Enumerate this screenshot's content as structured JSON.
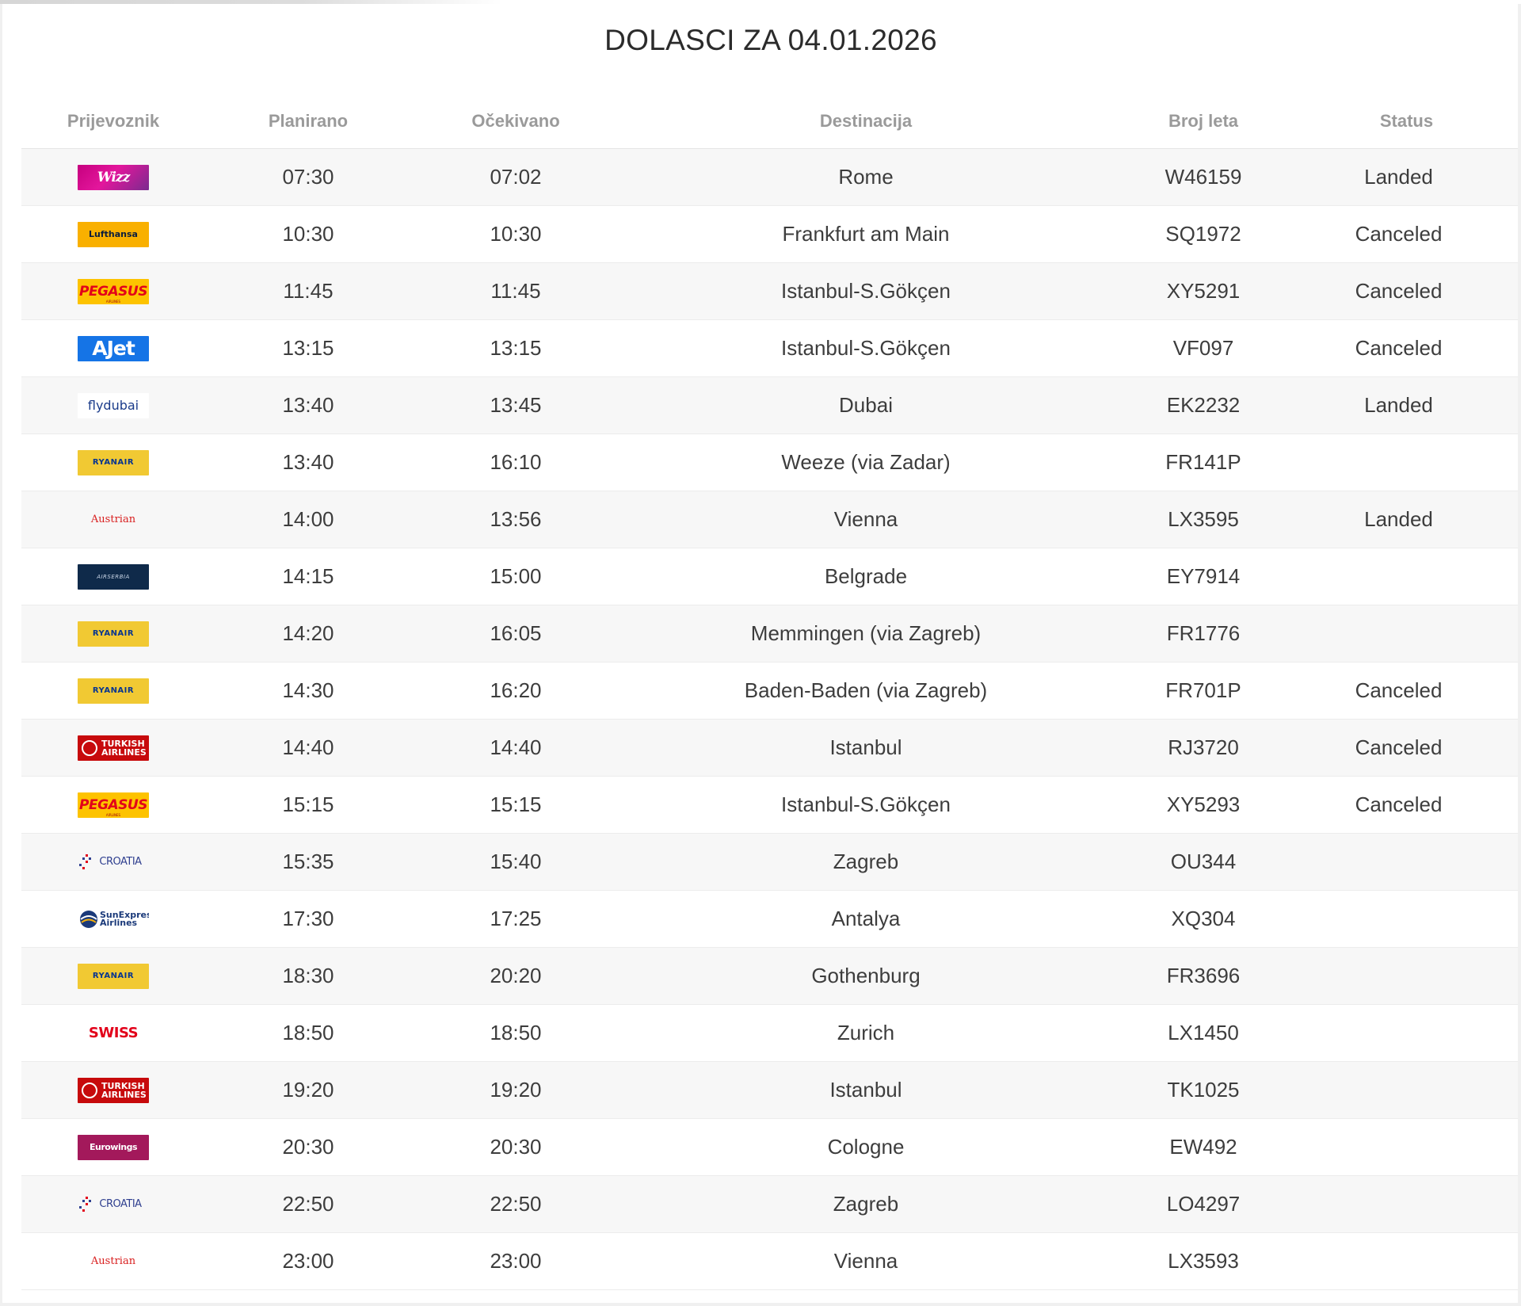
{
  "page": {
    "title": "DOLASCI ZA 04.01.2026",
    "load_progress_percent": 33
  },
  "table": {
    "headers": {
      "carrier": "Prijevoznik",
      "scheduled": "Planirano",
      "expected": "Očekivano",
      "destination": "Destinacija",
      "flight_number": "Broj leta",
      "status": "Status"
    },
    "rows": [
      {
        "airline": "Wizz Air",
        "logo_text": "Wizz",
        "scheduled": "07:30",
        "expected": "07:02",
        "destination": "Rome",
        "flight": "W46159",
        "status": "Landed"
      },
      {
        "airline": "Lufthansa",
        "logo_text": "Lufthansa",
        "scheduled": "10:30",
        "expected": "10:30",
        "destination": "Frankfurt am Main",
        "flight": "SQ1972",
        "status": "Canceled"
      },
      {
        "airline": "Pegasus Airlines",
        "logo_text": "PEGASUS",
        "logo_sub": "AIRLINES",
        "scheduled": "11:45",
        "expected": "11:45",
        "destination": "Istanbul-S.Gökçen",
        "flight": "XY5291",
        "status": "Canceled"
      },
      {
        "airline": "AJet",
        "logo_text": "AJet",
        "scheduled": "13:15",
        "expected": "13:15",
        "destination": "Istanbul-S.Gökçen",
        "flight": "VF097",
        "status": "Canceled"
      },
      {
        "airline": "flydubai",
        "logo_text": "flydubai",
        "scheduled": "13:40",
        "expected": "13:45",
        "destination": "Dubai",
        "flight": "EK2232",
        "status": "Landed"
      },
      {
        "airline": "Ryanair",
        "logo_text": "RYANAIR",
        "scheduled": "13:40",
        "expected": "16:10",
        "destination": "Weeze (via Zadar)",
        "flight": "FR141P",
        "status": ""
      },
      {
        "airline": "Austrian",
        "logo_text": "Austrian",
        "scheduled": "14:00",
        "expected": "13:56",
        "destination": "Vienna",
        "flight": "LX3595",
        "status": "Landed"
      },
      {
        "airline": "Air Serbia",
        "logo_text": "AIRSERBIA",
        "scheduled": "14:15",
        "expected": "15:00",
        "destination": "Belgrade",
        "flight": "EY7914",
        "status": ""
      },
      {
        "airline": "Ryanair",
        "logo_text": "RYANAIR",
        "scheduled": "14:20",
        "expected": "16:05",
        "destination": "Memmingen (via Zagreb)",
        "flight": "FR1776",
        "status": ""
      },
      {
        "airline": "Ryanair",
        "logo_text": "RYANAIR",
        "scheduled": "14:30",
        "expected": "16:20",
        "destination": "Baden-Baden (via Zagreb)",
        "flight": "FR701P",
        "status": "Canceled"
      },
      {
        "airline": "Turkish Airlines",
        "logo_text": "TURKISH AIRLINES",
        "scheduled": "14:40",
        "expected": "14:40",
        "destination": "Istanbul",
        "flight": "RJ3720",
        "status": "Canceled"
      },
      {
        "airline": "Pegasus Airlines",
        "logo_text": "PEGASUS",
        "logo_sub": "AIRLINES",
        "scheduled": "15:15",
        "expected": "15:15",
        "destination": "Istanbul-S.Gökçen",
        "flight": "XY5293",
        "status": "Canceled"
      },
      {
        "airline": "Croatia Airlines",
        "logo_text": "CROATIA",
        "scheduled": "15:35",
        "expected": "15:40",
        "destination": "Zagreb",
        "flight": "OU344",
        "status": ""
      },
      {
        "airline": "SunExpress",
        "logo_text": "SunExpress Airlines",
        "scheduled": "17:30",
        "expected": "17:25",
        "destination": "Antalya",
        "flight": "XQ304",
        "status": ""
      },
      {
        "airline": "Ryanair",
        "logo_text": "RYANAIR",
        "scheduled": "18:30",
        "expected": "20:20",
        "destination": "Gothenburg",
        "flight": "FR3696",
        "status": ""
      },
      {
        "airline": "Swiss",
        "logo_text": "SWISS",
        "scheduled": "18:50",
        "expected": "18:50",
        "destination": "Zurich",
        "flight": "LX1450",
        "status": ""
      },
      {
        "airline": "Turkish Airlines",
        "logo_text": "TURKISH AIRLINES",
        "scheduled": "19:20",
        "expected": "19:20",
        "destination": "Istanbul",
        "flight": "TK1025",
        "status": ""
      },
      {
        "airline": "Eurowings",
        "logo_text": "Eurowings",
        "scheduled": "20:30",
        "expected": "20:30",
        "destination": "Cologne",
        "flight": "EW492",
        "status": ""
      },
      {
        "airline": "Croatia Airlines",
        "logo_text": "CROATIA",
        "scheduled": "22:50",
        "expected": "22:50",
        "destination": "Zagreb",
        "flight": "LO4297",
        "status": ""
      },
      {
        "airline": "Austrian",
        "logo_text": "Austrian",
        "scheduled": "23:00",
        "expected": "23:00",
        "destination": "Vienna",
        "flight": "LX3593",
        "status": ""
      }
    ]
  },
  "logos": [
    "wizz",
    "lufthansa",
    "pegasus",
    "ajet",
    "flydubai",
    "ryanair",
    "austrian",
    "airserbia",
    "ryanair",
    "ryanair",
    "turkish",
    "pegasus",
    "croatia",
    "sunexpress",
    "ryanair",
    "swiss",
    "turkish",
    "eurowings",
    "croatia",
    "austrian"
  ],
  "colors": {
    "wizz": "#c6007e",
    "lufthansa": "#f9b000",
    "pegasus": "#fdc300",
    "ajet": "#1574e6",
    "ryanair": "#f1c933",
    "austrian": "#d81e1e",
    "airserbia": "#0f2a4a",
    "turkish": "#c70a0c",
    "croatia": "#2f3f8f",
    "swiss": "#e2001a",
    "eurowings": "#a3195b",
    "header_text": "#9a9a9a",
    "body_text": "#3d3d3d"
  }
}
